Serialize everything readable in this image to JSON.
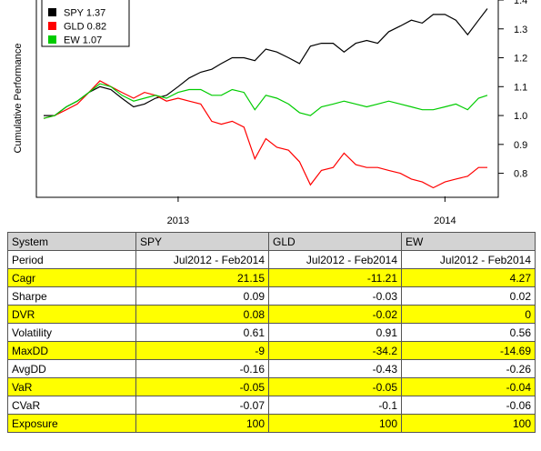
{
  "chart_data": {
    "type": "line",
    "ylabel": "Cumulative Performance",
    "xlabel": "",
    "x_tick_labels": [
      "2013",
      "2014"
    ],
    "y_ticks": [
      0.8,
      0.9,
      1.0,
      1.1,
      1.2,
      1.3,
      1.4
    ],
    "ylim": [
      0.72,
      1.4
    ],
    "x_range": [
      "2012-07",
      "2014-02"
    ],
    "grid": false,
    "legend_position": "top-left",
    "series": [
      {
        "name": "SPY 1.37",
        "color": "#000000",
        "points": [
          [
            "2012-07-01",
            1.0
          ],
          [
            "2012-07-16",
            1.0
          ],
          [
            "2012-08-01",
            1.03
          ],
          [
            "2012-08-16",
            1.05
          ],
          [
            "2012-09-01",
            1.08
          ],
          [
            "2012-09-16",
            1.1
          ],
          [
            "2012-10-01",
            1.09
          ],
          [
            "2012-10-16",
            1.06
          ],
          [
            "2012-11-01",
            1.03
          ],
          [
            "2012-11-16",
            1.04
          ],
          [
            "2012-12-01",
            1.06
          ],
          [
            "2012-12-16",
            1.07
          ],
          [
            "2013-01-01",
            1.1
          ],
          [
            "2013-01-16",
            1.13
          ],
          [
            "2013-02-01",
            1.15
          ],
          [
            "2013-02-16",
            1.16
          ],
          [
            "2013-03-01",
            1.18
          ],
          [
            "2013-03-16",
            1.2
          ],
          [
            "2013-04-01",
            1.2
          ],
          [
            "2013-04-16",
            1.19
          ],
          [
            "2013-05-01",
            1.23
          ],
          [
            "2013-05-16",
            1.22
          ],
          [
            "2013-06-01",
            1.2
          ],
          [
            "2013-06-16",
            1.18
          ],
          [
            "2013-07-01",
            1.24
          ],
          [
            "2013-07-16",
            1.25
          ],
          [
            "2013-08-01",
            1.25
          ],
          [
            "2013-08-16",
            1.22
          ],
          [
            "2013-09-01",
            1.25
          ],
          [
            "2013-09-16",
            1.26
          ],
          [
            "2013-10-01",
            1.25
          ],
          [
            "2013-10-16",
            1.29
          ],
          [
            "2013-11-01",
            1.31
          ],
          [
            "2013-11-16",
            1.33
          ],
          [
            "2013-12-01",
            1.32
          ],
          [
            "2013-12-16",
            1.35
          ],
          [
            "2014-01-01",
            1.35
          ],
          [
            "2014-01-16",
            1.33
          ],
          [
            "2014-02-01",
            1.28
          ],
          [
            "2014-02-16",
            1.33
          ],
          [
            "2014-02-28",
            1.37
          ]
        ]
      },
      {
        "name": "GLD 0.82",
        "color": "#ff0000",
        "points": [
          [
            "2012-07-01",
            0.99
          ],
          [
            "2012-07-16",
            1.0
          ],
          [
            "2012-08-01",
            1.02
          ],
          [
            "2012-08-16",
            1.04
          ],
          [
            "2012-09-01",
            1.08
          ],
          [
            "2012-09-16",
            1.12
          ],
          [
            "2012-10-01",
            1.1
          ],
          [
            "2012-10-16",
            1.08
          ],
          [
            "2012-11-01",
            1.06
          ],
          [
            "2012-11-16",
            1.08
          ],
          [
            "2012-12-01",
            1.07
          ],
          [
            "2012-12-16",
            1.05
          ],
          [
            "2013-01-01",
            1.06
          ],
          [
            "2013-01-16",
            1.05
          ],
          [
            "2013-02-01",
            1.04
          ],
          [
            "2013-02-16",
            0.98
          ],
          [
            "2013-03-01",
            0.97
          ],
          [
            "2013-03-16",
            0.98
          ],
          [
            "2013-04-01",
            0.96
          ],
          [
            "2013-04-16",
            0.85
          ],
          [
            "2013-05-01",
            0.92
          ],
          [
            "2013-05-16",
            0.89
          ],
          [
            "2013-06-01",
            0.88
          ],
          [
            "2013-06-16",
            0.84
          ],
          [
            "2013-07-01",
            0.76
          ],
          [
            "2013-07-16",
            0.81
          ],
          [
            "2013-08-01",
            0.82
          ],
          [
            "2013-08-16",
            0.87
          ],
          [
            "2013-09-01",
            0.83
          ],
          [
            "2013-09-16",
            0.82
          ],
          [
            "2013-10-01",
            0.82
          ],
          [
            "2013-10-16",
            0.81
          ],
          [
            "2013-11-01",
            0.8
          ],
          [
            "2013-11-16",
            0.78
          ],
          [
            "2013-12-01",
            0.77
          ],
          [
            "2013-12-16",
            0.75
          ],
          [
            "2014-01-01",
            0.77
          ],
          [
            "2014-01-16",
            0.78
          ],
          [
            "2014-02-01",
            0.79
          ],
          [
            "2014-02-16",
            0.82
          ],
          [
            "2014-02-28",
            0.82
          ]
        ]
      },
      {
        "name": "EW 1.07",
        "color": "#00cc00",
        "points": [
          [
            "2012-07-01",
            0.99
          ],
          [
            "2012-07-16",
            1.0
          ],
          [
            "2012-08-01",
            1.03
          ],
          [
            "2012-08-16",
            1.05
          ],
          [
            "2012-09-01",
            1.08
          ],
          [
            "2012-09-16",
            1.11
          ],
          [
            "2012-10-01",
            1.1
          ],
          [
            "2012-10-16",
            1.07
          ],
          [
            "2012-11-01",
            1.05
          ],
          [
            "2012-11-16",
            1.06
          ],
          [
            "2012-12-01",
            1.07
          ],
          [
            "2012-12-16",
            1.06
          ],
          [
            "2013-01-01",
            1.08
          ],
          [
            "2013-01-16",
            1.09
          ],
          [
            "2013-02-01",
            1.09
          ],
          [
            "2013-02-16",
            1.07
          ],
          [
            "2013-03-01",
            1.07
          ],
          [
            "2013-03-16",
            1.09
          ],
          [
            "2013-04-01",
            1.08
          ],
          [
            "2013-04-16",
            1.02
          ],
          [
            "2013-05-01",
            1.07
          ],
          [
            "2013-05-16",
            1.06
          ],
          [
            "2013-06-01",
            1.04
          ],
          [
            "2013-06-16",
            1.01
          ],
          [
            "2013-07-01",
            1.0
          ],
          [
            "2013-07-16",
            1.03
          ],
          [
            "2013-08-01",
            1.04
          ],
          [
            "2013-08-16",
            1.05
          ],
          [
            "2013-09-01",
            1.04
          ],
          [
            "2013-09-16",
            1.03
          ],
          [
            "2013-10-01",
            1.04
          ],
          [
            "2013-10-16",
            1.05
          ],
          [
            "2013-11-01",
            1.04
          ],
          [
            "2013-11-16",
            1.03
          ],
          [
            "2013-12-01",
            1.02
          ],
          [
            "2013-12-16",
            1.02
          ],
          [
            "2014-01-01",
            1.03
          ],
          [
            "2014-01-16",
            1.04
          ],
          [
            "2014-02-01",
            1.02
          ],
          [
            "2014-02-16",
            1.06
          ],
          [
            "2014-02-28",
            1.07
          ]
        ]
      }
    ]
  },
  "table": {
    "header": [
      "System",
      "SPY",
      "GLD",
      "EW"
    ],
    "rows": [
      {
        "label": "Period",
        "values": [
          "Jul2012 - Feb2014",
          "Jul2012 - Feb2014",
          "Jul2012 - Feb2014"
        ],
        "highlight": false
      },
      {
        "label": "Cagr",
        "values": [
          "21.15",
          "-11.21",
          "4.27"
        ],
        "highlight": true
      },
      {
        "label": "Sharpe",
        "values": [
          "0.09",
          "-0.03",
          "0.02"
        ],
        "highlight": false
      },
      {
        "label": "DVR",
        "values": [
          "0.08",
          "-0.02",
          "0"
        ],
        "highlight": true
      },
      {
        "label": "Volatility",
        "values": [
          "0.61",
          "0.91",
          "0.56"
        ],
        "highlight": false
      },
      {
        "label": "MaxDD",
        "values": [
          "-9",
          "-34.2",
          "-14.69"
        ],
        "highlight": true
      },
      {
        "label": "AvgDD",
        "values": [
          "-0.16",
          "-0.43",
          "-0.26"
        ],
        "highlight": false
      },
      {
        "label": "VaR",
        "values": [
          "-0.05",
          "-0.05",
          "-0.04"
        ],
        "highlight": true
      },
      {
        "label": "CVaR",
        "values": [
          "-0.07",
          "-0.1",
          "-0.06"
        ],
        "highlight": false
      },
      {
        "label": "Exposure",
        "values": [
          "100",
          "100",
          "100"
        ],
        "highlight": true
      }
    ]
  }
}
